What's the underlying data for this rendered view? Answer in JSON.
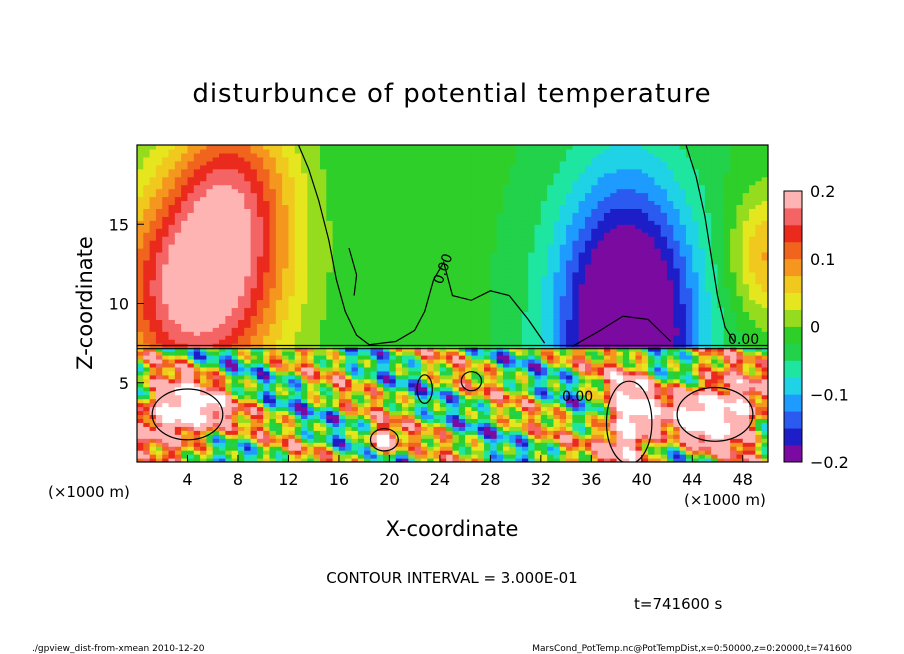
{
  "chart_data": {
    "type": "heatmap",
    "title": "disturbunce of potential temperature",
    "xlabel": "X-coordinate",
    "ylabel": "Z-coordinate",
    "x_unit_left": "(×1000 m)",
    "x_unit_right": "(×1000 m)",
    "xlim": [
      0,
      50
    ],
    "ylim": [
      0,
      20
    ],
    "x_ticks": [
      4,
      8,
      12,
      16,
      20,
      24,
      28,
      32,
      36,
      40,
      44,
      48
    ],
    "y_ticks": [
      5,
      10,
      15
    ],
    "colorbar": {
      "range": [
        -0.2,
        0.2
      ],
      "ticks": [
        {
          "value": 0.2,
          "label": "0.2"
        },
        {
          "value": 0.1,
          "label": "0.1"
        },
        {
          "value": 0.0,
          "label": "0"
        },
        {
          "value": -0.1,
          "label": "−0.1"
        },
        {
          "value": -0.2,
          "label": "−0.2"
        }
      ],
      "colors": [
        "#7a0aa0",
        "#1e1ec8",
        "#2a5af0",
        "#1e9bff",
        "#1fd2e6",
        "#1ee6a0",
        "#21d24a",
        "#2fcf2a",
        "#96dc1e",
        "#e6e61e",
        "#f0c81e",
        "#f5961e",
        "#f0641e",
        "#eb2a1e",
        "#f56464",
        "#ffb4b4"
      ]
    },
    "contour_labels": [
      "0.00",
      "0.00",
      "0.00"
    ],
    "contour_interval_text": "CONTOUR INTERVAL = 3.000E-01",
    "time_text": "t=741600 s"
  },
  "footer": {
    "left": "./gpview_dist-from-xmean   2010-12-20",
    "right": "MarsCond_PotTemp.nc@PotTempDist,x=0:50000,z=0:20000,t=741600"
  }
}
